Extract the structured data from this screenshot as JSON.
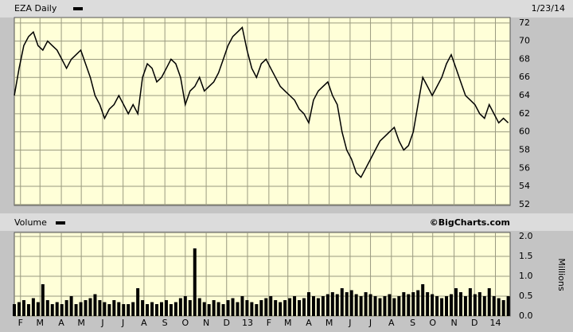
{
  "chart_data": [
    {
      "type": "line",
      "title": "EZA Daily",
      "date": "1/23/14",
      "series": [
        {
          "name": "EZA Daily",
          "color": "#000000",
          "values": [
            64,
            67,
            69.5,
            70.5,
            71,
            69.5,
            69,
            70,
            69.5,
            69,
            68,
            67,
            68,
            68.5,
            69,
            67.5,
            66,
            64,
            63,
            61.5,
            62.5,
            63,
            64,
            63,
            62,
            63,
            62,
            66,
            67.5,
            67,
            65.5,
            66,
            67,
            68,
            67.5,
            66,
            63,
            64.5,
            65,
            66,
            64.5,
            65,
            65.5,
            66.5,
            68,
            69.5,
            70.5,
            71,
            71.5,
            69,
            67,
            66,
            67.5,
            68,
            67,
            66,
            65,
            64.5,
            64,
            63.5,
            62.5,
            62,
            61,
            63.5,
            64.5,
            65,
            65.5,
            64,
            63,
            60,
            58,
            57,
            55.5,
            55,
            56,
            57,
            58,
            59,
            59.5,
            60,
            60.5,
            59,
            58,
            58.5,
            60,
            63,
            66,
            65,
            64,
            65,
            66,
            67.5,
            68.5,
            67,
            65.5,
            64,
            63.5,
            63,
            62,
            61.5,
            63,
            62,
            61,
            61.5,
            61
          ]
        }
      ],
      "xlim": [
        0,
        104.4
      ],
      "ylim": [
        51.9,
        72.6
      ],
      "yticks": [
        52,
        54,
        56,
        58,
        60,
        62,
        64,
        66,
        68,
        70,
        72
      ],
      "grid": true,
      "background": "#ffffd8"
    },
    {
      "type": "bar",
      "title": "Volume",
      "credit": "©BigCharts.com",
      "y_label": "Millions",
      "series": [
        {
          "name": "Volume",
          "color": "#000000",
          "values": [
            0.3,
            0.35,
            0.4,
            0.3,
            0.45,
            0.35,
            0.8,
            0.4,
            0.3,
            0.35,
            0.3,
            0.4,
            0.5,
            0.3,
            0.35,
            0.4,
            0.45,
            0.55,
            0.4,
            0.35,
            0.3,
            0.4,
            0.35,
            0.3,
            0.3,
            0.35,
            0.7,
            0.4,
            0.3,
            0.35,
            0.3,
            0.35,
            0.4,
            0.3,
            0.35,
            0.45,
            0.5,
            0.4,
            1.7,
            0.45,
            0.35,
            0.3,
            0.4,
            0.35,
            0.3,
            0.4,
            0.45,
            0.35,
            0.5,
            0.4,
            0.35,
            0.3,
            0.4,
            0.45,
            0.5,
            0.4,
            0.35,
            0.4,
            0.45,
            0.5,
            0.4,
            0.45,
            0.6,
            0.5,
            0.45,
            0.5,
            0.55,
            0.6,
            0.55,
            0.7,
            0.6,
            0.65,
            0.55,
            0.5,
            0.6,
            0.55,
            0.5,
            0.45,
            0.5,
            0.55,
            0.45,
            0.5,
            0.6,
            0.55,
            0.6,
            0.65,
            0.8,
            0.6,
            0.55,
            0.5,
            0.45,
            0.5,
            0.55,
            0.7,
            0.6,
            0.5,
            0.7,
            0.55,
            0.6,
            0.5,
            0.7,
            0.5,
            0.45,
            0.4,
            0.5
          ]
        }
      ],
      "xlim": [
        0,
        104.4
      ],
      "ylim": [
        0,
        2.1
      ],
      "yticks": [
        {
          "value": 0,
          "label": "0.0"
        },
        0.5,
        {
          "value": 1,
          "label": "1.0"
        },
        1.5,
        {
          "value": 2,
          "label": "2.0"
        }
      ],
      "xticks": [
        {
          "value": 1.3,
          "label": "F"
        },
        {
          "value": 5.4,
          "label": "M"
        },
        {
          "value": 9.9,
          "label": "A"
        },
        {
          "value": 14.1,
          "label": "M"
        },
        {
          "value": 18.6,
          "label": "J"
        },
        {
          "value": 22.9,
          "label": "J"
        },
        {
          "value": 27.3,
          "label": "A"
        },
        {
          "value": 31.7,
          "label": "S"
        },
        {
          "value": 36,
          "label": "O"
        },
        {
          "value": 40.4,
          "label": "N"
        },
        {
          "value": 44.7,
          "label": "D"
        },
        {
          "value": 49.1,
          "label": "13"
        },
        {
          "value": 53.6,
          "label": "F"
        },
        {
          "value": 57.6,
          "label": "M"
        },
        {
          "value": 62,
          "label": "A"
        },
        {
          "value": 66.3,
          "label": "M"
        },
        {
          "value": 70.7,
          "label": "J"
        },
        {
          "value": 75,
          "label": "J"
        },
        {
          "value": 79.4,
          "label": "A"
        },
        {
          "value": 83.9,
          "label": "S"
        },
        {
          "value": 88.1,
          "label": "O"
        },
        {
          "value": 92.6,
          "label": "N"
        },
        {
          "value": 96.9,
          "label": "D"
        },
        {
          "value": 101.3,
          "label": "14"
        }
      ],
      "grid": true,
      "background": "#ffffd8"
    }
  ]
}
